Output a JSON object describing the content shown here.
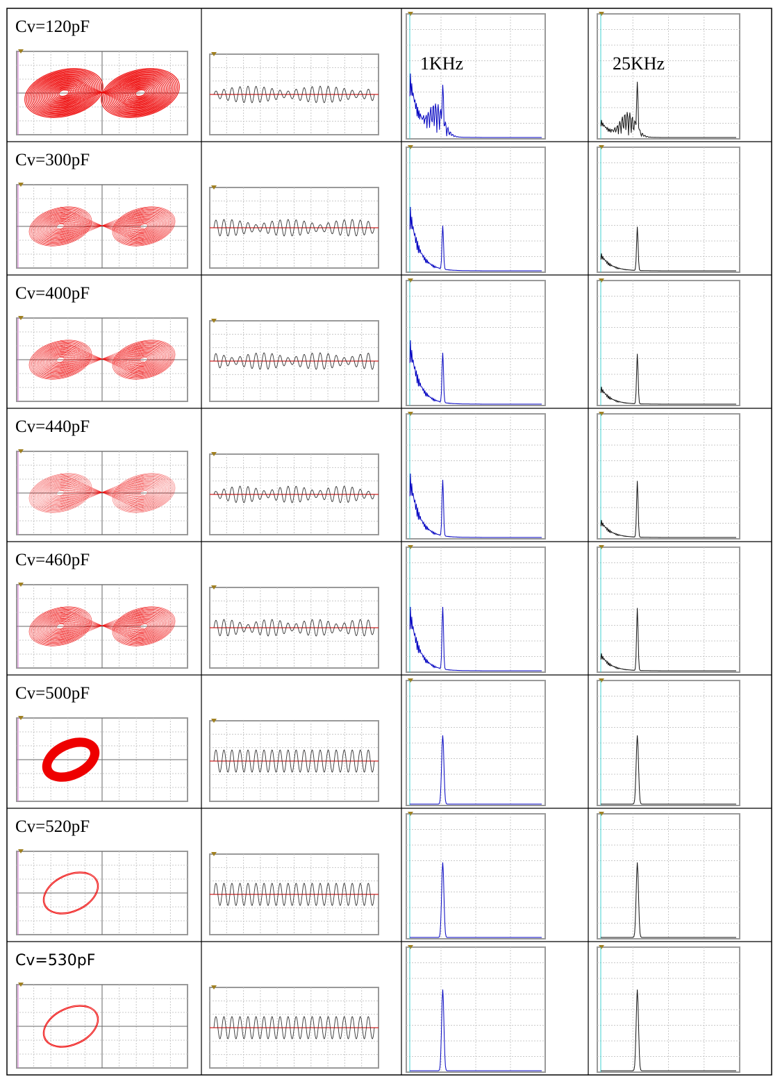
{
  "table": {
    "rows": [
      {
        "label": "Cv=120pF"
      },
      {
        "label": "Cv=300pF"
      },
      {
        "label": "Cv=400pF"
      },
      {
        "label": "Cv=440pF"
      },
      {
        "label": "Cv=460pF"
      },
      {
        "label": "Cv=500pF"
      },
      {
        "label": "Cv=520pF"
      },
      {
        "label": "Cv=530pF"
      }
    ],
    "spectrum_labels": [
      "1KHz",
      "25KHz"
    ]
  }
}
